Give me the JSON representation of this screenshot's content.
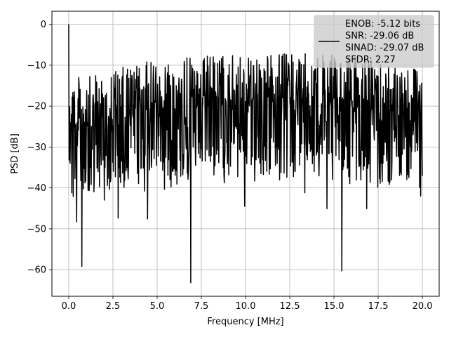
{
  "chart_data": {
    "type": "line",
    "title": "",
    "xlabel": "Frequency [MHz]",
    "ylabel": "PSD [dB]",
    "xlim": [
      -0.95,
      20.95
    ],
    "ylim": [
      -66.5,
      3.2
    ],
    "xticks": [
      0.0,
      2.5,
      5.0,
      7.5,
      10.0,
      12.5,
      15.0,
      17.5,
      20.0
    ],
    "xtick_labels": [
      "0.0",
      "2.5",
      "5.0",
      "7.5",
      "10.0",
      "12.5",
      "15.0",
      "17.5",
      "20.0"
    ],
    "yticks": [
      0,
      -10,
      -20,
      -30,
      -40,
      -50,
      -60
    ],
    "ytick_labels": [
      "0",
      "−10",
      "−20",
      "−30",
      "−40",
      "−50",
      "−60"
    ],
    "grid": true,
    "legend_position": "top-right",
    "legend_entries": [
      "ENOB: -5.12 bits",
      "SNR: -29.06 dB",
      "SINAD: -29.07 dB",
      "SFDR: 2.27"
    ],
    "series": [
      {
        "color": "#000000",
        "x_range": [
          0.0,
          20.0
        ],
        "points_count": 1024,
        "floor_envelope": [
          [
            0.0,
            -4.0
          ],
          [
            0.1,
            -10.5
          ],
          [
            0.3,
            -12.0
          ],
          [
            0.7,
            -13.0
          ],
          [
            1.5,
            -12.5
          ],
          [
            3.0,
            -10.5
          ],
          [
            5.0,
            -8.5
          ],
          [
            7.5,
            -7.5
          ],
          [
            10.0,
            -7.0
          ],
          [
            12.5,
            -7.0
          ],
          [
            15.0,
            -7.5
          ],
          [
            17.5,
            -8.5
          ],
          [
            20.0,
            -10.0
          ]
        ],
        "peak_point": [
          0.0,
          0.0
        ],
        "notable_dips": [
          [
            0.45,
            -48.3
          ],
          [
            0.75,
            -59.2
          ],
          [
            1.1,
            -40.6
          ],
          [
            2.8,
            -47.4
          ],
          [
            4.45,
            -47.6
          ],
          [
            6.9,
            -63.2
          ],
          [
            9.95,
            -44.5
          ],
          [
            13.35,
            -41.2
          ],
          [
            14.6,
            -45.1
          ],
          [
            15.45,
            -60.3
          ],
          [
            16.85,
            -45.1
          ],
          [
            19.9,
            -42.0
          ]
        ]
      }
    ]
  }
}
